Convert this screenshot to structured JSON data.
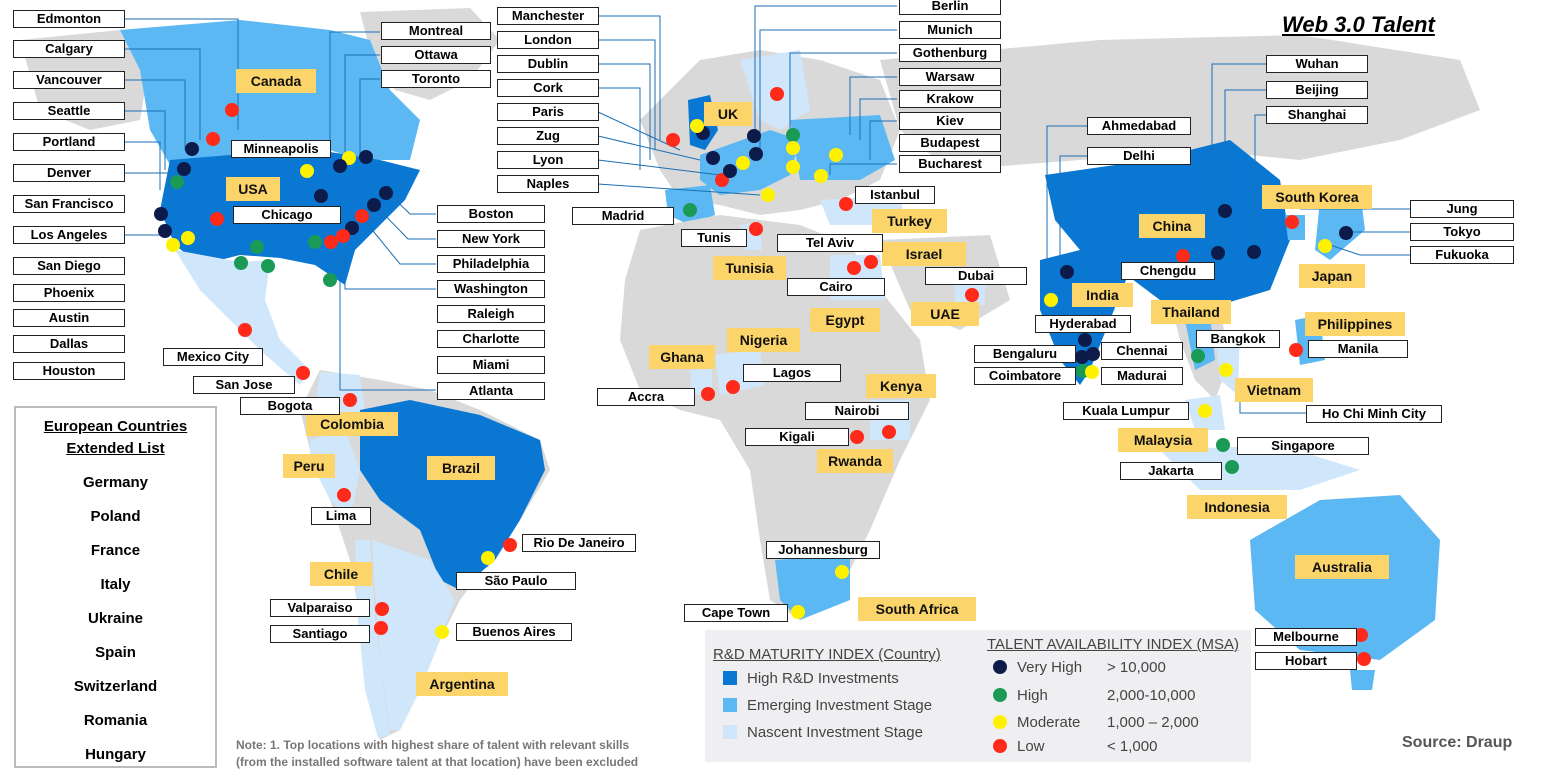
{
  "title": "Web 3.0 Talent",
  "colors": {
    "high_rd": "#0a78d2",
    "emerging": "#5cb8f2",
    "nascent": "#cfe6fb",
    "land": "#d9d9d9",
    "very_high": "#0d1b4a",
    "high": "#1a9a55",
    "moderate": "#fff200",
    "low": "#ff2a1a",
    "country_label": "#fbd46a"
  },
  "countries": [
    "Canada",
    "USA",
    "UK",
    "Turkey",
    "Israel",
    "Tunisia",
    "Egypt",
    "UAE",
    "Nigeria",
    "Ghana",
    "Kenya",
    "Rwanda",
    "Colombia",
    "Peru",
    "Brazil",
    "Chile",
    "Argentina",
    "South Africa",
    "China",
    "South Korea",
    "Japan",
    "India",
    "Thailand",
    "Philippines",
    "Vietnam",
    "Malaysia",
    "Indonesia",
    "Australia"
  ],
  "cities": [
    "Edmonton",
    "Calgary",
    "Vancouver",
    "Seattle",
    "Portland",
    "Denver",
    "San Francisco",
    "Los Angeles",
    "San Diego",
    "Phoenix",
    "Austin",
    "Dallas",
    "Houston",
    "Montreal",
    "Ottawa",
    "Toronto",
    "Minneapolis",
    "Chicago",
    "Boston",
    "New York",
    "Philadelphia",
    "Washington",
    "Raleigh",
    "Charlotte",
    "Miami",
    "Atlanta",
    "Mexico City",
    "San Jose",
    "Bogota",
    "Lima",
    "Rio De Janeiro",
    "São Paulo",
    "Valparaiso",
    "Santiago",
    "Buenos Aires",
    "Manchester",
    "London",
    "Dublin",
    "Cork",
    "Paris",
    "Zug",
    "Lyon",
    "Naples",
    "Madrid",
    "Berlin",
    "Munich",
    "Gothenburg",
    "Warsaw",
    "Krakow",
    "Kiev",
    "Budapest",
    "Bucharest",
    "Istanbul",
    "Tunis",
    "Tel Aviv",
    "Cairo",
    "Dubai",
    "Lagos",
    "Accra",
    "Nairobi",
    "Kigali",
    "Johannesburg",
    "Cape Town",
    "Ahmedabad",
    "Delhi",
    "Hyderabad",
    "Bengaluru",
    "Chennai",
    "Coimbatore",
    "Madurai",
    "Chengdu",
    "Wuhan",
    "Beijing",
    "Shanghai",
    "Jung",
    "Tokyo",
    "Fukuoka",
    "Bangkok",
    "Manila",
    "Kuala Lumpur",
    "Ho Chi Minh City",
    "Singapore",
    "Jakarta",
    "Melbourne",
    "Hobart"
  ],
  "eu_list": {
    "title_line1": "European Countries",
    "title_line2": "Extended List",
    "items": [
      "Germany",
      "Poland",
      "France",
      "Italy",
      "Ukraine",
      "Spain",
      "Switzerland",
      "Romania",
      "Hungary"
    ]
  },
  "legend": {
    "rd_title": "R&D MATURITY INDEX (Country)",
    "rd_items": [
      "High R&D Investments",
      "Emerging Investment Stage",
      "Nascent Investment Stage"
    ],
    "talent_title": "TALENT AVAILABILITY INDEX (MSA)",
    "talent_items": [
      {
        "label": "Very High",
        "range": "> 10,000"
      },
      {
        "label": "High",
        "range": "2,000-10,000"
      },
      {
        "label": "Moderate",
        "range": "1,000 – 2,000"
      },
      {
        "label": "Low",
        "range": "< 1,000"
      }
    ]
  },
  "note_line1": "Note: 1. Top locations with highest share of talent with relevant skills",
  "note_line2": "(from the installed software talent at that location) have been excluded",
  "source": "Source: Draup"
}
